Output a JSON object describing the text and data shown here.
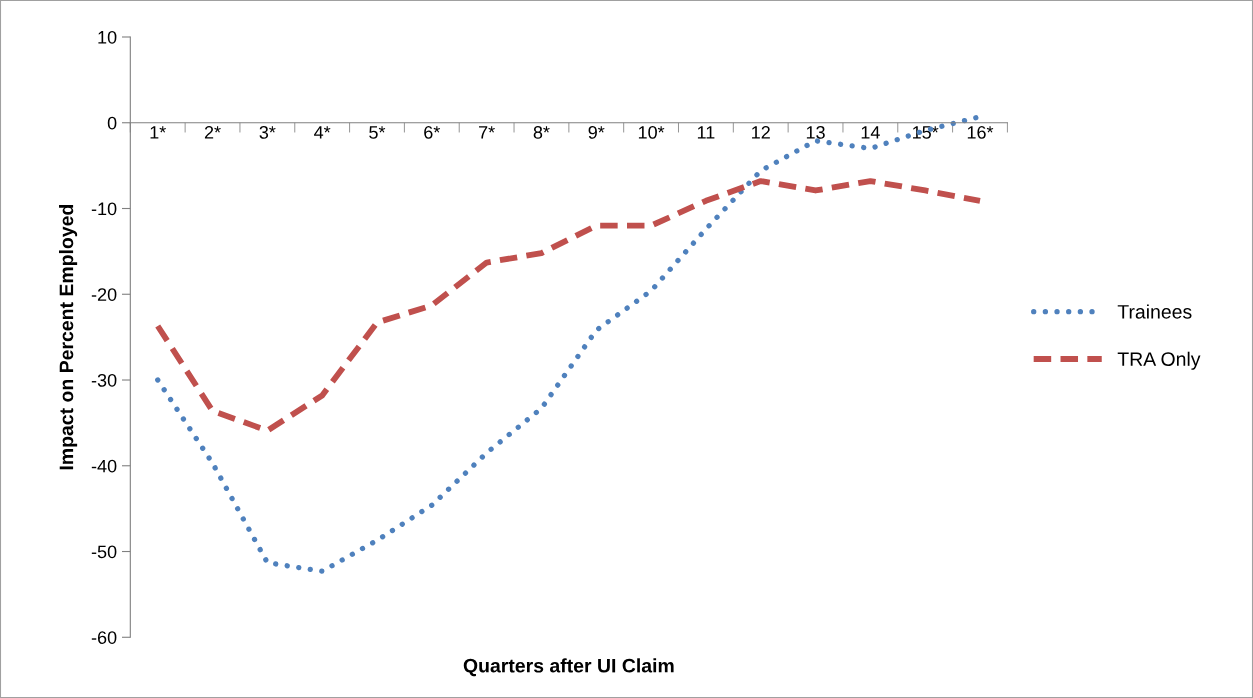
{
  "chart_data": {
    "type": "line",
    "xlabel": "Quarters after UI Claim",
    "ylabel": "Impact on Percent Employed",
    "categories": [
      "1*",
      "2*",
      "3*",
      "4*",
      "5*",
      "6*",
      "7*",
      "8*",
      "9*",
      "10*",
      "11",
      "12",
      "13",
      "14",
      "15*",
      "16*"
    ],
    "ylim": [
      -60,
      10
    ],
    "yticks": [
      -60,
      -50,
      -40,
      -30,
      -20,
      -10,
      0,
      10
    ],
    "grid": false,
    "legend": "right",
    "marker": "none",
    "series": [
      {
        "name": "Trainees",
        "color": "#4f81bd",
        "line_style": "dotted",
        "values": [
          -30,
          -39.7,
          -51.3,
          -52.3,
          -48.7,
          -44.6,
          -38.5,
          -33.3,
          -24.2,
          -19.6,
          -12.4,
          -5.6,
          -2.1,
          -3,
          -0.9,
          0.7
        ]
      },
      {
        "name": "TRA Only",
        "color": "#c0504d",
        "line_style": "dashed",
        "values": [
          -23.7,
          -33.6,
          -35.9,
          -31.8,
          -23.3,
          -21.3,
          -16.3,
          -15.2,
          -12,
          -12,
          -9.1,
          -6.8,
          -7.9,
          -6.8,
          -7.9,
          -9.1
        ]
      }
    ]
  }
}
